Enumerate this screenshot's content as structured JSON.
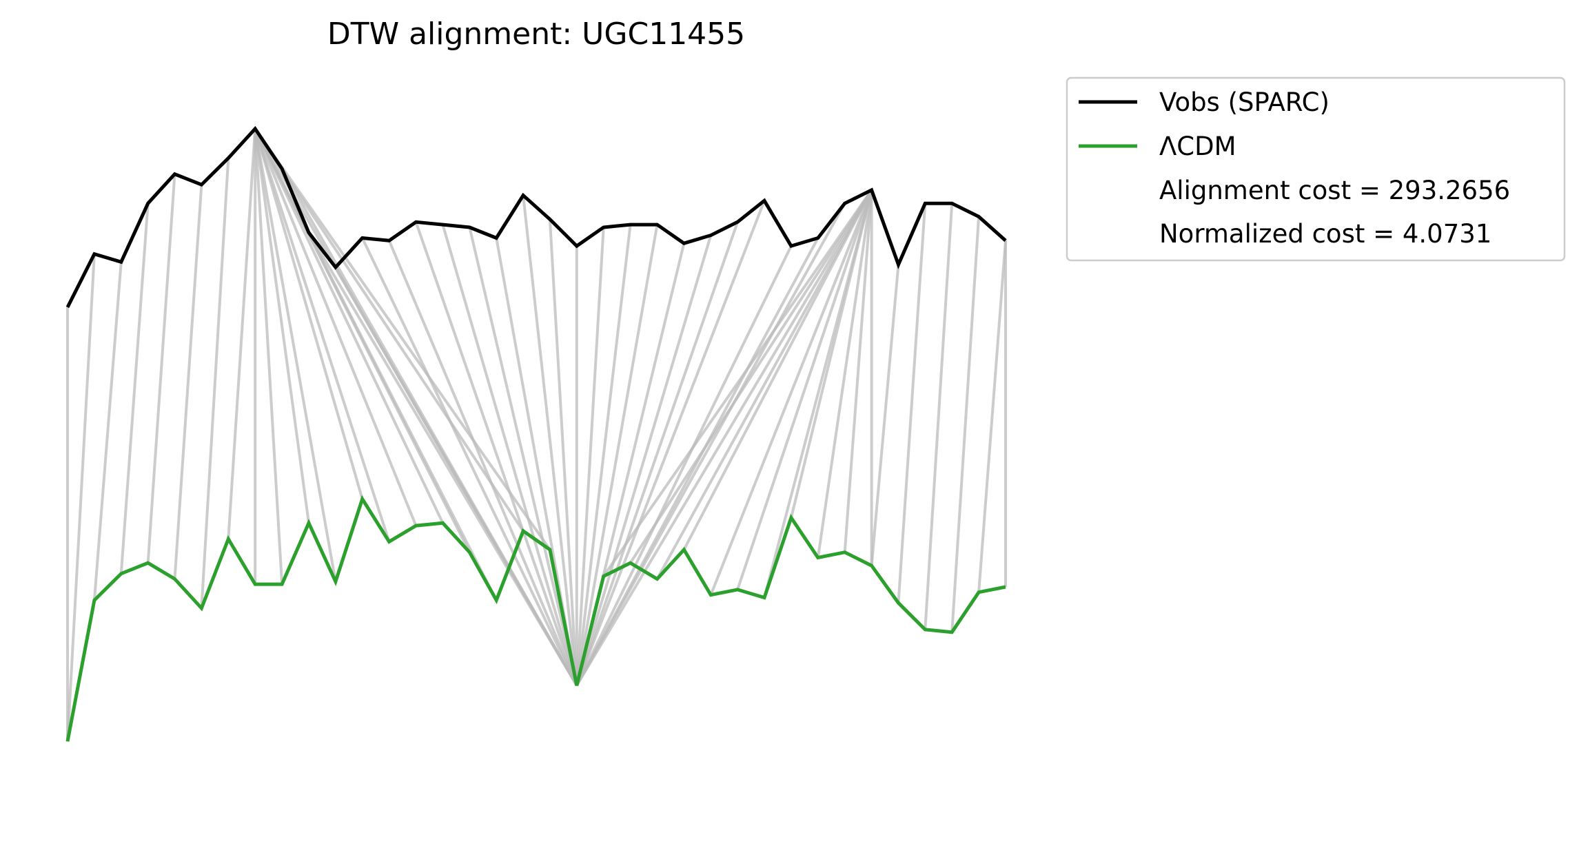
{
  "chart_data": {
    "type": "line",
    "title": "DTW alignment: UGC11455",
    "xlabel": "",
    "ylabel": "",
    "axes_visible": false,
    "grid": false,
    "legend_placement": "outside-top-right",
    "ylim": [
      -1.6,
      1.4
    ],
    "x": [
      0,
      1,
      2,
      3,
      4,
      5,
      6,
      7,
      8,
      9,
      10,
      11,
      12,
      13,
      14,
      15,
      16,
      17,
      18,
      19,
      20,
      21,
      22,
      23,
      24,
      25,
      26,
      27,
      28,
      29,
      30,
      31,
      32,
      33,
      34,
      35
    ],
    "series": [
      {
        "name": "Vobs (SPARC)",
        "color": "#000000",
        "values": [
          0.35,
          0.55,
          0.52,
          0.74,
          0.85,
          0.81,
          0.91,
          1.02,
          0.87,
          0.63,
          0.5,
          0.61,
          0.6,
          0.67,
          0.66,
          0.65,
          0.61,
          0.77,
          0.68,
          0.58,
          0.65,
          0.66,
          0.66,
          0.59,
          0.62,
          0.67,
          0.75,
          0.58,
          0.61,
          0.74,
          0.79,
          0.51,
          0.74,
          0.74,
          0.69,
          0.6
        ]
      },
      {
        "name": "ΛCDM",
        "color": "#2ca02c",
        "values": [
          -1.28,
          -0.75,
          -0.65,
          -0.61,
          -0.67,
          -0.78,
          -0.52,
          -0.69,
          -0.69,
          -0.46,
          -0.68,
          -0.37,
          -0.53,
          -0.47,
          -0.46,
          -0.57,
          -0.75,
          -0.49,
          -0.56,
          -1.07,
          -0.66,
          -0.61,
          -0.67,
          -0.56,
          -0.73,
          -0.71,
          -0.74,
          -0.44,
          -0.59,
          -0.57,
          -0.62,
          -0.76,
          -0.86,
          -0.87,
          -0.72,
          -0.7
        ]
      }
    ],
    "alignment_path": [
      [
        0,
        0
      ],
      [
        1,
        0
      ],
      [
        2,
        1
      ],
      [
        3,
        2
      ],
      [
        4,
        3
      ],
      [
        5,
        4
      ],
      [
        6,
        5
      ],
      [
        7,
        6
      ],
      [
        7,
        7
      ],
      [
        7,
        8
      ],
      [
        7,
        9
      ],
      [
        7,
        10
      ],
      [
        7,
        11
      ],
      [
        7,
        12
      ],
      [
        7,
        13
      ],
      [
        7,
        14
      ],
      [
        7,
        15
      ],
      [
        7,
        16
      ],
      [
        7,
        17
      ],
      [
        7,
        18
      ],
      [
        7,
        19
      ],
      [
        8,
        19
      ],
      [
        9,
        19
      ],
      [
        10,
        19
      ],
      [
        11,
        19
      ],
      [
        12,
        19
      ],
      [
        13,
        19
      ],
      [
        14,
        19
      ],
      [
        15,
        19
      ],
      [
        16,
        19
      ],
      [
        17,
        19
      ],
      [
        18,
        19
      ],
      [
        19,
        19
      ],
      [
        20,
        19
      ],
      [
        21,
        19
      ],
      [
        22,
        19
      ],
      [
        23,
        19
      ],
      [
        24,
        19
      ],
      [
        25,
        19
      ],
      [
        26,
        19
      ],
      [
        27,
        19
      ],
      [
        28,
        19
      ],
      [
        29,
        19
      ],
      [
        30,
        19
      ],
      [
        30,
        20
      ],
      [
        30,
        21
      ],
      [
        30,
        22
      ],
      [
        30,
        23
      ],
      [
        30,
        24
      ],
      [
        30,
        25
      ],
      [
        30,
        26
      ],
      [
        30,
        27
      ],
      [
        30,
        28
      ],
      [
        30,
        29
      ],
      [
        30,
        30
      ],
      [
        31,
        30
      ],
      [
        32,
        31
      ],
      [
        33,
        32
      ],
      [
        34,
        33
      ],
      [
        35,
        34
      ],
      [
        35,
        35
      ]
    ],
    "alignment_color": "#bbbbbb",
    "annotations": [
      "Alignment cost = 293.2656",
      "Normalized cost = 4.0731"
    ]
  }
}
